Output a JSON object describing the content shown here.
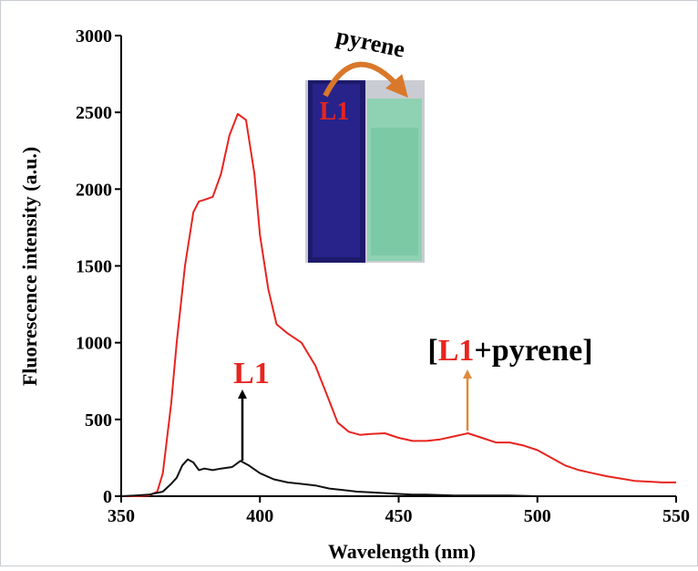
{
  "chart_data": {
    "type": "line",
    "xlabel": "Wavelength (nm)",
    "ylabel": "Fluorescence intensity (a.u.)",
    "xlim": [
      350,
      550
    ],
    "xticks": [
      350,
      400,
      450,
      500,
      550
    ],
    "ylim": [
      0,
      3000
    ],
    "yticks": [
      0,
      500,
      1000,
      1500,
      2000,
      2500,
      3000
    ],
    "series": [
      {
        "color": "#e8241f",
        "x": [
          350,
          355,
          360,
          363,
          365,
          368,
          370,
          373,
          376,
          378,
          380,
          383,
          386,
          389,
          392,
          395,
          398,
          400,
          403,
          406,
          410,
          415,
          420,
          425,
          428,
          432,
          436,
          440,
          445,
          450,
          455,
          460,
          465,
          470,
          475,
          480,
          485,
          490,
          495,
          500,
          505,
          510,
          515,
          520,
          525,
          530,
          535,
          540,
          545,
          550
        ],
        "values": [
          0,
          0,
          5,
          30,
          150,
          600,
          1000,
          1500,
          1850,
          1920,
          1930,
          1950,
          2100,
          2350,
          2490,
          2450,
          2100,
          1700,
          1350,
          1120,
          1060,
          1000,
          850,
          620,
          480,
          420,
          400,
          405,
          410,
          380,
          360,
          360,
          370,
          390,
          410,
          380,
          350,
          350,
          330,
          300,
          250,
          200,
          170,
          150,
          130,
          115,
          100,
          95,
          90,
          90
        ]
      },
      {
        "color": "#111111",
        "x": [
          350,
          355,
          360,
          365,
          368,
          370,
          372,
          374,
          376,
          378,
          380,
          383,
          386,
          390,
          393,
          396,
          400,
          405,
          410,
          415,
          420,
          425,
          430,
          435,
          440,
          445,
          450,
          455,
          460,
          470,
          480,
          490,
          500,
          550
        ],
        "values": [
          0,
          5,
          10,
          30,
          80,
          120,
          200,
          240,
          220,
          170,
          180,
          170,
          180,
          190,
          230,
          200,
          150,
          110,
          90,
          80,
          70,
          50,
          40,
          30,
          25,
          20,
          15,
          10,
          10,
          5,
          5,
          5,
          0,
          0
        ]
      }
    ],
    "annotations": {
      "l1": "L1",
      "complex_open": "[",
      "complex_l1": "L1",
      "complex_rest": "+pyrene]",
      "inset_pyrene": "pyrene",
      "inset_l1": "L1"
    }
  }
}
